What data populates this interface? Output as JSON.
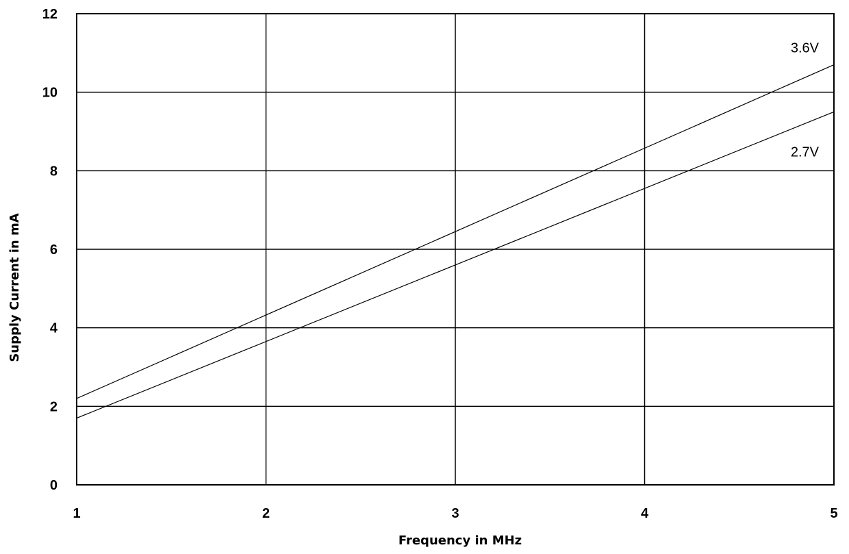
{
  "chart_data": {
    "type": "line",
    "xlabel": "Frequency in MHz",
    "ylabel": "Supply Current in mA",
    "xlim": [
      1,
      5
    ],
    "ylim": [
      0,
      12
    ],
    "x_ticks": [
      "1",
      "2",
      "3",
      "4",
      "5"
    ],
    "y_ticks": [
      "0",
      "2",
      "4",
      "6",
      "8",
      "10",
      "12"
    ],
    "grid": true,
    "series": [
      {
        "name": "3.6V",
        "x": [
          1,
          5
        ],
        "y": [
          2.2,
          10.7
        ]
      },
      {
        "name": "2.7V",
        "x": [
          1,
          5
        ],
        "y": [
          1.7,
          9.5
        ]
      }
    ]
  }
}
